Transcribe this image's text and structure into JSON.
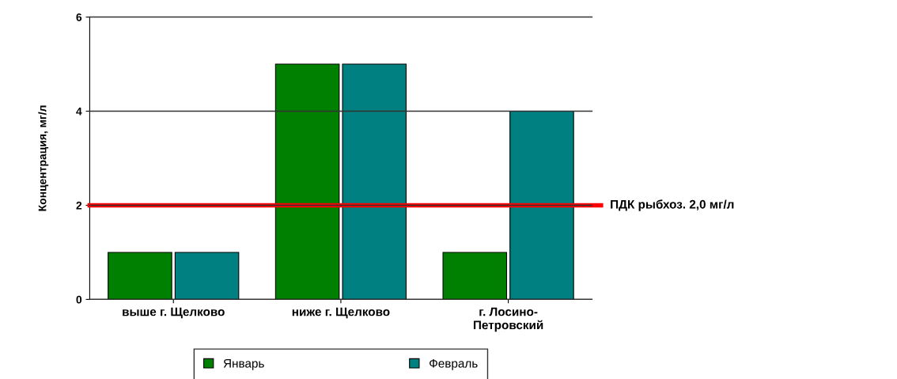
{
  "chart_data": {
    "type": "bar",
    "ylabel": "Концентрация, мг/л",
    "categories": [
      "выше г. Щелково",
      "ниже г. Щелково",
      "г. Лосино-\nПетровский"
    ],
    "series": [
      {
        "name": "Январь",
        "color": "#008000",
        "values": [
          1,
          5,
          1
        ]
      },
      {
        "name": "Февраль",
        "color": "#008080",
        "values": [
          1,
          5,
          4
        ]
      }
    ],
    "ylim": [
      0,
      6
    ],
    "yticks": [
      0,
      2,
      4,
      6
    ],
    "grid": "y",
    "legend": "bottom",
    "ref_lines": [
      {
        "axis": "y",
        "value": 2.0,
        "label": "ПДК рыбхоз. 2,0 мг/л",
        "color": "#ff0000"
      }
    ]
  }
}
